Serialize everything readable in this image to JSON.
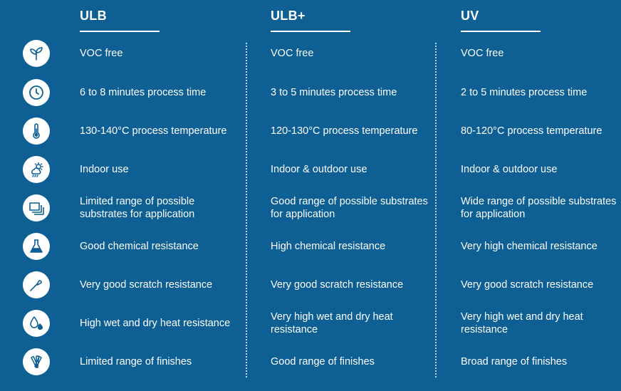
{
  "columns": [
    "ULB",
    "ULB+",
    "UV"
  ],
  "rows": [
    {
      "icon": "leaves-icon",
      "cells": [
        "VOC free",
        "VOC free",
        "VOC free"
      ]
    },
    {
      "icon": "clock-icon",
      "cells": [
        "6 to 8 minutes process time",
        "3 to 5 minutes process time",
        "2 to 5 minutes process time"
      ]
    },
    {
      "icon": "thermometer-icon",
      "cells": [
        "130-140°C process temperature",
        "120-130°C process temperature",
        "80-120°C process temperature"
      ]
    },
    {
      "icon": "weather-icon",
      "cells": [
        "Indoor use",
        "Indoor & outdoor use",
        "Indoor & outdoor use"
      ]
    },
    {
      "icon": "substrates-icon",
      "cells": [
        "Limited range of possible substrates for application",
        "Good range of possible substrates for application",
        "Wide range of possible substrates for application"
      ]
    },
    {
      "icon": "flask-icon",
      "cells": [
        "Good chemical resistance",
        "High chemical resistance",
        "Very high chemical resistance"
      ]
    },
    {
      "icon": "scalpel-icon",
      "cells": [
        "Very good scratch resistance",
        "Very good scratch resistance",
        "Very good scratch resistance"
      ]
    },
    {
      "icon": "drop-flame-icon",
      "cells": [
        "High wet and dry heat resistance",
        "Very high wet and dry heat resistance",
        "Very high wet and dry heat resistance"
      ]
    },
    {
      "icon": "swatches-icon",
      "cells": [
        "Limited range of finishes",
        "Good range of finishes",
        "Broad range of finishes"
      ]
    }
  ],
  "colors": {
    "background": "#0d5f94",
    "icon": "#0d5f94",
    "text": "#ffffff"
  }
}
